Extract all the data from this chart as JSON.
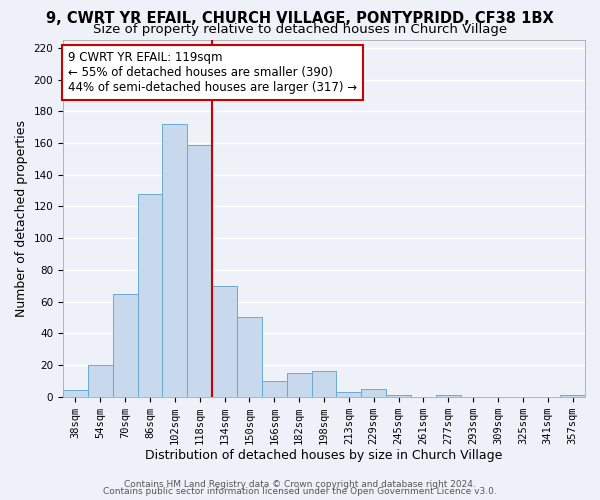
{
  "title": "9, CWRT YR EFAIL, CHURCH VILLAGE, PONTYPRIDD, CF38 1BX",
  "subtitle": "Size of property relative to detached houses in Church Village",
  "xlabel": "Distribution of detached houses by size in Church Village",
  "ylabel": "Number of detached properties",
  "bin_labels": [
    "38sqm",
    "54sqm",
    "70sqm",
    "86sqm",
    "102sqm",
    "118sqm",
    "134sqm",
    "150sqm",
    "166sqm",
    "182sqm",
    "198sqm",
    "213sqm",
    "229sqm",
    "245sqm",
    "261sqm",
    "277sqm",
    "293sqm",
    "309sqm",
    "325sqm",
    "341sqm",
    "357sqm"
  ],
  "bar_values": [
    4,
    20,
    65,
    128,
    172,
    159,
    70,
    50,
    10,
    15,
    16,
    3,
    5,
    1,
    0,
    1,
    0,
    0,
    0,
    0,
    1
  ],
  "bar_color": "#c8d9ed",
  "bar_edge_color": "#6aaad4",
  "reference_line_label": "9 CWRT YR EFAIL: 119sqm",
  "annotation_line1": "← 55% of detached houses are smaller (390)",
  "annotation_line2": "44% of semi-detached houses are larger (317) →",
  "box_edge_color": "#cc0000",
  "vline_color": "#cc0000",
  "ylim": [
    0,
    225
  ],
  "yticks": [
    0,
    20,
    40,
    60,
    80,
    100,
    120,
    140,
    160,
    180,
    200,
    220
  ],
  "footer1": "Contains HM Land Registry data © Crown copyright and database right 2024.",
  "footer2": "Contains public sector information licensed under the Open Government Licence v3.0.",
  "background_color": "#eef2f8",
  "grid_color": "#ffffff",
  "title_fontsize": 10.5,
  "subtitle_fontsize": 9.5,
  "axis_label_fontsize": 9,
  "tick_fontsize": 7.5,
  "annotation_fontsize": 8.5,
  "footer_fontsize": 6.5,
  "vline_bin_index": 5
}
